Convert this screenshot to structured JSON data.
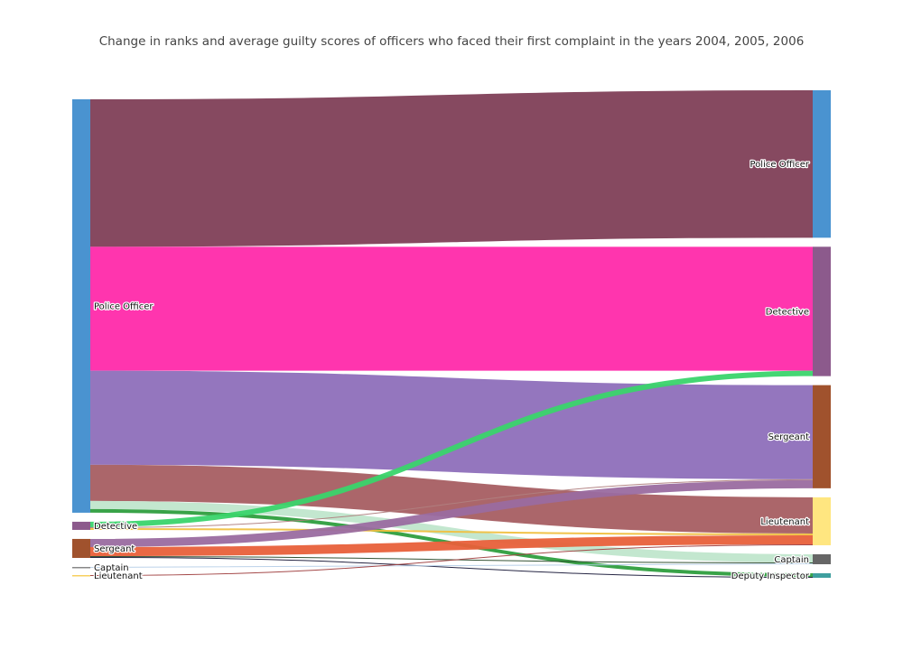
{
  "title": "Change in ranks and average guilty scores of officers who faced their first complaint in the years 2004, 2005, 2006",
  "chart_data": {
    "type": "sankey",
    "source_nodes": [
      {
        "id": "s-po",
        "label": "Police Officer",
        "color": "#4a93d0"
      },
      {
        "id": "s-det",
        "label": "Detective",
        "color": "#8c5a8c"
      },
      {
        "id": "s-sgt",
        "label": "Sergeant",
        "color": "#a0522d"
      },
      {
        "id": "s-cpt",
        "label": "Captain",
        "color": "#888888"
      },
      {
        "id": "s-lt",
        "label": "Lieutenant",
        "color": "#f7d060"
      }
    ],
    "target_nodes": [
      {
        "id": "t-po",
        "label": "Police Officer",
        "color": "#4a93d0"
      },
      {
        "id": "t-det",
        "label": "Detective",
        "color": "#8c5a8c"
      },
      {
        "id": "t-sgt",
        "label": "Sergeant",
        "color": "#a0522d"
      },
      {
        "id": "t-lt",
        "label": "Lieutenant",
        "color": "#ffe680"
      },
      {
        "id": "t-cpt",
        "label": "Captain",
        "color": "#666666"
      },
      {
        "id": "t-di",
        "label": "Deputy Inspector",
        "color": "#3f9f9f"
      }
    ],
    "links": [
      {
        "source": "s-po",
        "target": "t-po",
        "value": 163,
        "color": "#7f3f57"
      },
      {
        "source": "s-po",
        "target": "t-det",
        "value": 137,
        "color": "#ff2aaa"
      },
      {
        "source": "s-po",
        "target": "t-sgt",
        "value": 104,
        "color": "#8e6fba"
      },
      {
        "source": "s-po",
        "target": "t-lt",
        "value": 40,
        "color": "#a65e62"
      },
      {
        "source": "s-po",
        "target": "t-cpt",
        "value": 9,
        "color": "#c0e6cc"
      },
      {
        "source": "s-po",
        "target": "t-di",
        "value": 4,
        "color": "#2e9e3e"
      },
      {
        "source": "s-det",
        "target": "t-det",
        "value": 6,
        "color": "#3ad46b"
      },
      {
        "source": "s-det",
        "target": "t-sgt",
        "value": 1,
        "color": "#b08080"
      },
      {
        "source": "s-det",
        "target": "t-lt",
        "value": 2,
        "color": "#f0c040"
      },
      {
        "source": "s-sgt",
        "target": "t-sgt",
        "value": 9,
        "color": "#9a6ba0"
      },
      {
        "source": "s-sgt",
        "target": "t-lt",
        "value": 10,
        "color": "#e8603a"
      },
      {
        "source": "s-sgt",
        "target": "t-cpt",
        "value": 1,
        "color": "#2a4a2a"
      },
      {
        "source": "s-sgt",
        "target": "t-di",
        "value": 1,
        "color": "#1a1a3a"
      },
      {
        "source": "s-cpt",
        "target": "t-cpt",
        "value": 1,
        "color": "#b8d0e8"
      },
      {
        "source": "s-lt",
        "target": "t-lt",
        "value": 1,
        "color": "#a04040"
      }
    ]
  }
}
